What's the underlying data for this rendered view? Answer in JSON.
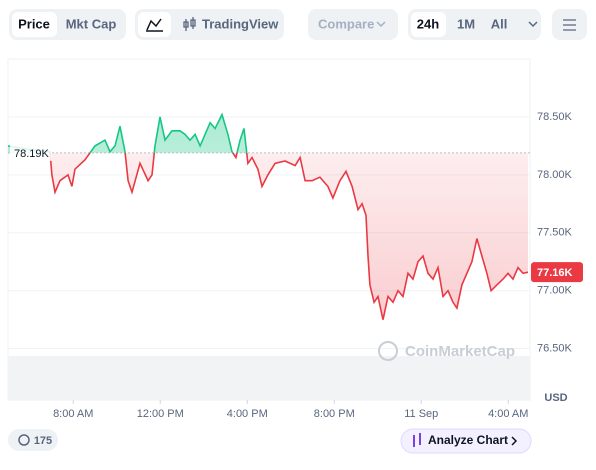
{
  "toolbar": {
    "tabs": [
      "Price",
      "Mkt Cap"
    ],
    "tradingview": "TradingView",
    "compare": "Compare",
    "ranges": [
      "24h",
      "1M",
      "All"
    ]
  },
  "chart_data": {
    "type": "line",
    "x": [
      5.0,
      6.01,
      6.93,
      7.02,
      7.16,
      7.39,
      7.76,
      7.94,
      8.08,
      8.54,
      9.0,
      9.46,
      9.69,
      9.92,
      10.15,
      10.38,
      10.52,
      10.7,
      11.07,
      11.44,
      11.62,
      11.76,
      11.99,
      12.22,
      12.54,
      12.91,
      13.14,
      13.37,
      13.6,
      13.83,
      14.06,
      14.29,
      14.52,
      14.84,
      15.11,
      15.3,
      15.48,
      15.67,
      15.85,
      16.03,
      16.22,
      16.49,
      16.68,
      16.95,
      17.28,
      17.74,
      18.2,
      18.43,
      18.66,
      18.98,
      19.34,
      19.71,
      19.94,
      20.26,
      20.54,
      20.82,
      21.09,
      21.28,
      21.46,
      21.55,
      21.64,
      21.83,
      22.01,
      22.24,
      22.47,
      22.7,
      22.93,
      23.16,
      23.39,
      23.62,
      23.85,
      24.08,
      24.31,
      24.54,
      24.77,
      25.0,
      25.23,
      25.46,
      25.64,
      25.87,
      26.1,
      26.33,
      26.56,
      26.79,
      27.02,
      27.21,
      27.48,
      27.76,
      27.99,
      28.22,
      28.45,
      28.68,
      28.91
    ],
    "values": [
      78250,
      78220,
      78200,
      78000,
      77850,
      77950,
      78000,
      77900,
      78050,
      78130,
      78250,
      78300,
      78200,
      78250,
      78420,
      78200,
      77950,
      77850,
      78100,
      77950,
      78000,
      78250,
      78500,
      78300,
      78380,
      78380,
      78350,
      78300,
      78350,
      78250,
      78350,
      78450,
      78400,
      78520,
      78350,
      78200,
      78150,
      78300,
      78400,
      78100,
      78150,
      78050,
      77900,
      78000,
      78100,
      78120,
      78080,
      78150,
      77950,
      77950,
      77980,
      77900,
      77800,
      77950,
      78030,
      77900,
      77700,
      77750,
      77650,
      77300,
      77050,
      76900,
      76950,
      76750,
      76950,
      76900,
      77000,
      76950,
      77150,
      77100,
      77250,
      77300,
      77150,
      77100,
      77200,
      76950,
      77000,
      76900,
      76850,
      77050,
      77150,
      77250,
      77450,
      77300,
      77150,
      77000,
      77050,
      77100,
      77150,
      77100,
      77200,
      77150,
      77160
    ],
    "xlim": [
      5,
      29
    ],
    "xticks": [
      {
        "value": 8,
        "label": "8:00 AM"
      },
      {
        "value": 12,
        "label": "12:00 PM"
      },
      {
        "value": 16,
        "label": "4:00 PM"
      },
      {
        "value": 20,
        "label": "8:00 PM"
      },
      {
        "value": 24,
        "label": "11 Sep"
      },
      {
        "value": 28,
        "label": "4:00 AM"
      }
    ],
    "ylim": [
      76100,
      79000
    ],
    "yticks": [
      {
        "value": 78500,
        "label": "78.50K"
      },
      {
        "value": 78000,
        "label": "78.00K"
      },
      {
        "value": 77500,
        "label": "77.50K"
      },
      {
        "value": 77000,
        "label": "77.00K"
      },
      {
        "value": 76500,
        "label": "76.50K"
      }
    ],
    "y_unit": "USD",
    "reference": {
      "value": 78190,
      "label": "78.19K"
    },
    "last_price": {
      "value": 77160,
      "label": "77.16K"
    },
    "up_color": "#16c784",
    "down_color": "#ea3943",
    "grid": true,
    "watermark": "CoinMarketCap"
  },
  "footer": {
    "badge": "175",
    "analyze": "Analyze Chart"
  }
}
